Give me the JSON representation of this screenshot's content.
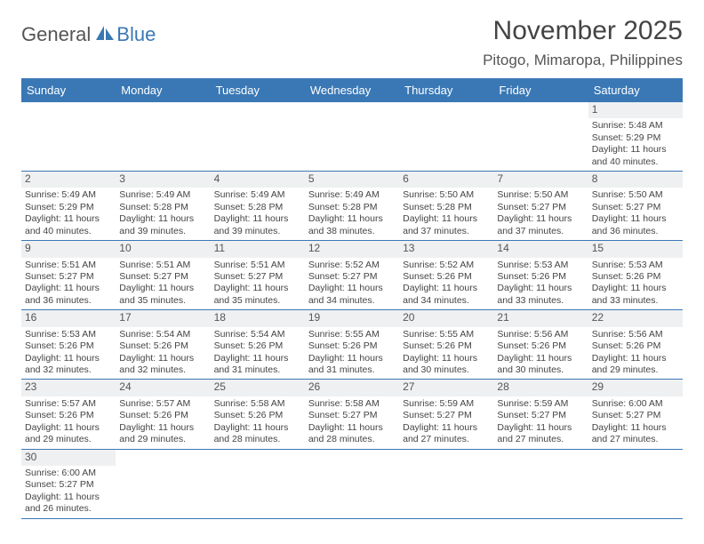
{
  "brand": {
    "part1": "General",
    "part2": "Blue",
    "logo_color": "#3a78b5",
    "text_gray": "#555555"
  },
  "title": "November 2025",
  "location": "Pitogo, Mimaropa, Philippines",
  "header_bg": "#3a78b5",
  "header_text": "#ffffff",
  "border_color": "#3a78b5",
  "daynum_bg": "#eef0f1",
  "weekdays": [
    "Sunday",
    "Monday",
    "Tuesday",
    "Wednesday",
    "Thursday",
    "Friday",
    "Saturday"
  ],
  "weeks": [
    [
      null,
      null,
      null,
      null,
      null,
      null,
      {
        "n": "1",
        "sr": "5:48 AM",
        "ss": "5:29 PM",
        "dl": "11 hours and 40 minutes."
      }
    ],
    [
      {
        "n": "2",
        "sr": "5:49 AM",
        "ss": "5:29 PM",
        "dl": "11 hours and 40 minutes."
      },
      {
        "n": "3",
        "sr": "5:49 AM",
        "ss": "5:28 PM",
        "dl": "11 hours and 39 minutes."
      },
      {
        "n": "4",
        "sr": "5:49 AM",
        "ss": "5:28 PM",
        "dl": "11 hours and 39 minutes."
      },
      {
        "n": "5",
        "sr": "5:49 AM",
        "ss": "5:28 PM",
        "dl": "11 hours and 38 minutes."
      },
      {
        "n": "6",
        "sr": "5:50 AM",
        "ss": "5:28 PM",
        "dl": "11 hours and 37 minutes."
      },
      {
        "n": "7",
        "sr": "5:50 AM",
        "ss": "5:27 PM",
        "dl": "11 hours and 37 minutes."
      },
      {
        "n": "8",
        "sr": "5:50 AM",
        "ss": "5:27 PM",
        "dl": "11 hours and 36 minutes."
      }
    ],
    [
      {
        "n": "9",
        "sr": "5:51 AM",
        "ss": "5:27 PM",
        "dl": "11 hours and 36 minutes."
      },
      {
        "n": "10",
        "sr": "5:51 AM",
        "ss": "5:27 PM",
        "dl": "11 hours and 35 minutes."
      },
      {
        "n": "11",
        "sr": "5:51 AM",
        "ss": "5:27 PM",
        "dl": "11 hours and 35 minutes."
      },
      {
        "n": "12",
        "sr": "5:52 AM",
        "ss": "5:27 PM",
        "dl": "11 hours and 34 minutes."
      },
      {
        "n": "13",
        "sr": "5:52 AM",
        "ss": "5:26 PM",
        "dl": "11 hours and 34 minutes."
      },
      {
        "n": "14",
        "sr": "5:53 AM",
        "ss": "5:26 PM",
        "dl": "11 hours and 33 minutes."
      },
      {
        "n": "15",
        "sr": "5:53 AM",
        "ss": "5:26 PM",
        "dl": "11 hours and 33 minutes."
      }
    ],
    [
      {
        "n": "16",
        "sr": "5:53 AM",
        "ss": "5:26 PM",
        "dl": "11 hours and 32 minutes."
      },
      {
        "n": "17",
        "sr": "5:54 AM",
        "ss": "5:26 PM",
        "dl": "11 hours and 32 minutes."
      },
      {
        "n": "18",
        "sr": "5:54 AM",
        "ss": "5:26 PM",
        "dl": "11 hours and 31 minutes."
      },
      {
        "n": "19",
        "sr": "5:55 AM",
        "ss": "5:26 PM",
        "dl": "11 hours and 31 minutes."
      },
      {
        "n": "20",
        "sr": "5:55 AM",
        "ss": "5:26 PM",
        "dl": "11 hours and 30 minutes."
      },
      {
        "n": "21",
        "sr": "5:56 AM",
        "ss": "5:26 PM",
        "dl": "11 hours and 30 minutes."
      },
      {
        "n": "22",
        "sr": "5:56 AM",
        "ss": "5:26 PM",
        "dl": "11 hours and 29 minutes."
      }
    ],
    [
      {
        "n": "23",
        "sr": "5:57 AM",
        "ss": "5:26 PM",
        "dl": "11 hours and 29 minutes."
      },
      {
        "n": "24",
        "sr": "5:57 AM",
        "ss": "5:26 PM",
        "dl": "11 hours and 29 minutes."
      },
      {
        "n": "25",
        "sr": "5:58 AM",
        "ss": "5:26 PM",
        "dl": "11 hours and 28 minutes."
      },
      {
        "n": "26",
        "sr": "5:58 AM",
        "ss": "5:27 PM",
        "dl": "11 hours and 28 minutes."
      },
      {
        "n": "27",
        "sr": "5:59 AM",
        "ss": "5:27 PM",
        "dl": "11 hours and 27 minutes."
      },
      {
        "n": "28",
        "sr": "5:59 AM",
        "ss": "5:27 PM",
        "dl": "11 hours and 27 minutes."
      },
      {
        "n": "29",
        "sr": "6:00 AM",
        "ss": "5:27 PM",
        "dl": "11 hours and 27 minutes."
      }
    ],
    [
      {
        "n": "30",
        "sr": "6:00 AM",
        "ss": "5:27 PM",
        "dl": "11 hours and 26 minutes."
      },
      null,
      null,
      null,
      null,
      null,
      null
    ]
  ],
  "labels": {
    "sunrise": "Sunrise:",
    "sunset": "Sunset:",
    "daylight": "Daylight:"
  }
}
